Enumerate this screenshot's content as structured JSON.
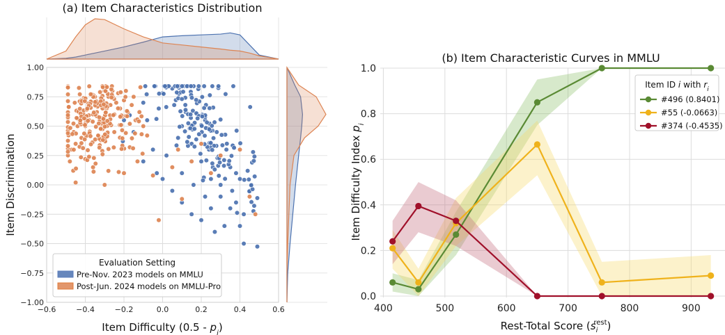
{
  "chart_data": [
    {
      "type": "scatter",
      "title": "(a) Item Characteristics Distribution",
      "xlabel_main": "Item Difficulty (0.5 - ",
      "xlabel_var": "p",
      "xlabel_sub": "i",
      "xlabel_end": ")",
      "ylabel": "Item Discrimination",
      "xlim": [
        -0.6,
        0.6
      ],
      "ylim": [
        -1.0,
        1.0
      ],
      "xticks": [
        "−0.6",
        "−0.4",
        "−0.2",
        "0.0",
        "0.2",
        "0.4",
        "0.6"
      ],
      "yticks": [
        "−1.00",
        "−0.75",
        "−0.50",
        "−0.25",
        "0.00",
        "0.25",
        "0.50",
        "0.75",
        "1.00"
      ],
      "grid": true,
      "legend_title": "Evaluation Setting",
      "legend_position": "lower-left",
      "series": [
        {
          "name": "Pre-Nov. 2023 models on MMLU",
          "color": "#5b7ebd",
          "fill": "#4c72b0",
          "cluster": {
            "x_center": 0.2,
            "x_spread": 0.15,
            "y_center": 0.25,
            "y_spread": 0.3,
            "count": 160
          },
          "points": [
            [
              -0.2,
              0.55
            ],
            [
              -0.1,
              0.7
            ],
            [
              0.0,
              0.78
            ],
            [
              0.05,
              0.82
            ],
            [
              0.1,
              0.5
            ],
            [
              0.15,
              0.35
            ],
            [
              0.2,
              0.2
            ],
            [
              0.25,
              0.05
            ],
            [
              0.3,
              -0.1
            ],
            [
              0.35,
              -0.2
            ],
            [
              0.4,
              -0.35
            ],
            [
              0.42,
              -0.5
            ],
            [
              0.38,
              0.1
            ],
            [
              0.33,
              0.3
            ],
            [
              0.28,
              0.45
            ],
            [
              0.22,
              0.55
            ],
            [
              0.18,
              0.6
            ],
            [
              0.12,
              0.62
            ],
            [
              0.08,
              0.4
            ],
            [
              0.02,
              0.25
            ],
            [
              -0.05,
              0.3
            ],
            [
              -0.1,
              0.2
            ],
            [
              0.0,
              0.05
            ],
            [
              0.05,
              -0.05
            ],
            [
              0.1,
              -0.15
            ],
            [
              0.15,
              -0.25
            ],
            [
              0.2,
              -0.3
            ],
            [
              0.25,
              -0.2
            ],
            [
              0.3,
              0.0
            ],
            [
              0.35,
              0.15
            ],
            [
              0.4,
              0.05
            ],
            [
              0.45,
              -0.05
            ],
            [
              0.44,
              0.12
            ],
            [
              0.38,
              -0.15
            ],
            [
              0.32,
              -0.35
            ],
            [
              0.27,
              -0.4
            ],
            [
              -0.15,
              0.45
            ],
            [
              -0.08,
              0.55
            ],
            [
              -0.02,
              0.65
            ],
            [
              0.06,
              0.68
            ],
            [
              0.14,
              0.48
            ],
            [
              0.24,
              0.3
            ],
            [
              -0.03,
              0.1
            ],
            [
              0.1,
              0.1
            ],
            [
              0.16,
              0.0
            ],
            [
              0.22,
              -0.1
            ],
            [
              0.26,
              0.15
            ],
            [
              0.36,
              -0.05
            ],
            [
              0.42,
              -0.25
            ],
            [
              0.46,
              0.0
            ]
          ]
        },
        {
          "name": "Post-Jun. 2024 models on MMLU-Pro",
          "color": "#e07b39",
          "fill": "#dd8452",
          "cluster": {
            "x_center": -0.35,
            "x_spread": 0.12,
            "y_center": 0.55,
            "y_spread": 0.18,
            "count": 200
          },
          "points": [
            [
              -0.48,
              0.2
            ],
            [
              -0.47,
              0.3
            ],
            [
              -0.46,
              0.45
            ],
            [
              -0.45,
              0.35
            ],
            [
              -0.44,
              0.5
            ],
            [
              -0.43,
              0.55
            ],
            [
              -0.42,
              0.4
            ],
            [
              -0.41,
              0.6
            ],
            [
              -0.4,
              0.5
            ],
            [
              -0.39,
              0.65
            ],
            [
              -0.38,
              0.55
            ],
            [
              -0.37,
              0.7
            ],
            [
              -0.36,
              0.6
            ],
            [
              -0.35,
              0.75
            ],
            [
              -0.34,
              0.62
            ],
            [
              -0.33,
              0.7
            ],
            [
              -0.32,
              0.55
            ],
            [
              -0.31,
              0.72
            ],
            [
              -0.3,
              0.8
            ],
            [
              -0.29,
              0.65
            ],
            [
              -0.28,
              0.75
            ],
            [
              -0.27,
              0.68
            ],
            [
              -0.26,
              0.8
            ],
            [
              -0.25,
              0.6
            ],
            [
              -0.24,
              0.7
            ],
            [
              -0.23,
              0.78
            ],
            [
              -0.22,
              0.65
            ],
            [
              -0.21,
              0.58
            ],
            [
              -0.2,
              0.72
            ],
            [
              -0.19,
              0.8
            ],
            [
              -0.18,
              0.62
            ],
            [
              -0.17,
              0.52
            ],
            [
              -0.16,
              0.68
            ],
            [
              -0.15,
              0.75
            ],
            [
              -0.14,
              0.55
            ],
            [
              -0.12,
              0.62
            ],
            [
              -0.1,
              0.5
            ],
            [
              -0.08,
              0.42
            ],
            [
              -0.45,
              0.02
            ],
            [
              -0.3,
              0.0
            ],
            [
              -0.36,
              0.15
            ],
            [
              -0.2,
              0.1
            ],
            [
              -0.13,
              0.2
            ],
            [
              -0.05,
              0.08
            ],
            [
              0.05,
              0.15
            ],
            [
              0.15,
              0.2
            ],
            [
              0.2,
              0.35
            ],
            [
              0.3,
              0.25
            ],
            [
              0.4,
              0.3
            ],
            [
              0.45,
              -0.1
            ],
            [
              0.48,
              -0.25
            ],
            [
              -0.02,
              -0.3
            ],
            [
              0.1,
              -0.12
            ],
            [
              -0.17,
              0.32
            ],
            [
              -0.25,
              0.45
            ],
            [
              -0.4,
              0.22
            ],
            [
              -0.32,
              0.38
            ],
            [
              0.08,
              0.3
            ],
            [
              0.25,
              0.1
            ]
          ]
        }
      ],
      "top_kde": {
        "x": [
          -0.6,
          -0.5,
          -0.45,
          -0.4,
          -0.35,
          -0.3,
          -0.2,
          -0.1,
          0.0,
          0.1,
          0.2,
          0.3,
          0.35,
          0.4,
          0.45,
          0.5,
          0.6
        ],
        "pre": [
          0,
          0.02,
          0.05,
          0.1,
          0.15,
          0.2,
          0.3,
          0.42,
          0.55,
          0.58,
          0.6,
          0.62,
          0.65,
          0.6,
          0.35,
          0.1,
          0
        ],
        "post": [
          0,
          0.2,
          0.55,
          0.85,
          1.0,
          0.98,
          0.75,
          0.55,
          0.4,
          0.35,
          0.3,
          0.25,
          0.22,
          0.2,
          0.15,
          0.08,
          0
        ]
      },
      "right_kde": {
        "y": [
          -1.0,
          -0.75,
          -0.5,
          -0.25,
          0.0,
          0.25,
          0.4,
          0.5,
          0.6,
          0.75,
          0.85,
          1.0
        ],
        "pre": [
          0,
          0.02,
          0.08,
          0.15,
          0.22,
          0.3,
          0.35,
          0.38,
          0.4,
          0.35,
          0.2,
          0
        ],
        "post": [
          0,
          0.0,
          0.02,
          0.05,
          0.08,
          0.18,
          0.45,
          0.8,
          1.0,
          0.75,
          0.3,
          0
        ]
      }
    },
    {
      "type": "line",
      "title": "(b) Item Characteristic Curves in MMLU",
      "xlabel_main": "Rest-Total Score (",
      "xlabel_var": "s",
      "xlabel_sub": "i",
      "xlabel_sup": "rest",
      "xlabel_end": ")",
      "ylabel_main": "Item Difficulty Index ",
      "ylabel_var": "p",
      "ylabel_sub": "i",
      "xlim": [
        395,
        955
      ],
      "ylim": [
        0.0,
        1.0
      ],
      "xticks": [
        "400",
        "500",
        "600",
        "700",
        "800",
        "900"
      ],
      "yticks": [
        "0.0",
        "0.2",
        "0.4",
        "0.6",
        "0.8",
        "1.0"
      ],
      "grid": true,
      "legend_title_main": "Item ID ",
      "legend_title_var": "i",
      "legend_title_mid": " with ",
      "legend_title_var2": "r",
      "legend_title_sub": "i",
      "legend_position": "upper-right",
      "x": [
        415,
        457,
        518,
        650,
        755,
        932
      ],
      "series": [
        {
          "name": "#496 (0.8401)",
          "color": "#5a8a34",
          "band": "#8cc06a",
          "values": [
            0.06,
            0.03,
            0.27,
            0.85,
            1.0,
            1.0
          ],
          "lower": [
            0.02,
            0.0,
            0.18,
            0.75,
            1.0,
            1.0
          ],
          "upper": [
            0.1,
            0.07,
            0.37,
            0.95,
            1.0,
            1.0
          ]
        },
        {
          "name": "#55 (-0.0663)",
          "color": "#efb21b",
          "band": "#f7d96a",
          "values": [
            0.21,
            0.06,
            0.32,
            0.665,
            0.06,
            0.09
          ],
          "lower": [
            0.12,
            0.0,
            0.22,
            0.53,
            0.0,
            0.0
          ],
          "upper": [
            0.29,
            0.12,
            0.43,
            0.77,
            0.15,
            0.18
          ]
        },
        {
          "name": "#374 (-0.4535)",
          "color": "#a0102a",
          "band": "#c46a7a",
          "values": [
            0.24,
            0.395,
            0.33,
            0.0,
            0.0,
            0.0
          ],
          "lower": [
            0.14,
            0.28,
            0.22,
            0.0,
            0.0,
            0.0
          ],
          "upper": [
            0.33,
            0.5,
            0.42,
            0.0,
            0.0,
            0.0
          ]
        }
      ]
    }
  ]
}
